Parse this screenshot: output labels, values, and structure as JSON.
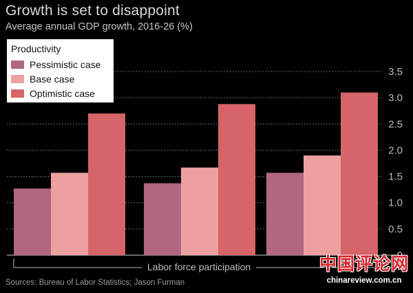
{
  "chart_data": {
    "type": "bar",
    "title": "Growth is set to disappoint",
    "subtitle": "Average annual GDP growth, 2016-26 (%)",
    "xlabel": "Labor force participation",
    "ylabel": "",
    "ylim": [
      0,
      3.5
    ],
    "yticks": [
      "3.5",
      "3.0",
      "2.5",
      "2.0",
      "1.5",
      "1.0",
      "0.5",
      "0"
    ],
    "ytick_values": [
      3.5,
      3.0,
      2.5,
      2.0,
      1.5,
      1.0,
      0.5,
      0
    ],
    "grid": true,
    "legend_title": "Productivity",
    "legend_position": "top-left",
    "categories": [
      "",
      "",
      ""
    ],
    "series": [
      {
        "name": "Pessimistic case",
        "color": "#b0677f",
        "values": [
          1.27,
          1.37,
          1.57
        ]
      },
      {
        "name": "Base case",
        "color": "#eda0a0",
        "values": [
          1.57,
          1.67,
          1.9
        ]
      },
      {
        "name": "Optimistic case",
        "color": "#d66468",
        "values": [
          2.7,
          2.88,
          3.1
        ]
      }
    ]
  },
  "source": "Sources: Bureau of Labor Statistics; Jason Furman",
  "watermark": {
    "text": "中国评论网",
    "url": "chinareview.com.cn"
  }
}
